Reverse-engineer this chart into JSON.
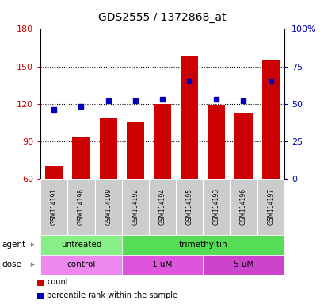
{
  "title": "GDS2555 / 1372868_at",
  "samples": [
    "GSM114191",
    "GSM114198",
    "GSM114199",
    "GSM114192",
    "GSM114194",
    "GSM114195",
    "GSM114193",
    "GSM114196",
    "GSM114197"
  ],
  "counts": [
    70,
    93,
    108,
    105,
    120,
    158,
    119,
    113,
    155
  ],
  "percentiles": [
    46,
    48,
    52,
    52,
    53,
    65,
    53,
    52,
    65
  ],
  "ylim_left": [
    60,
    180
  ],
  "ylim_right": [
    0,
    100
  ],
  "yticks_left": [
    60,
    90,
    120,
    150,
    180
  ],
  "yticks_right": [
    0,
    25,
    50,
    75,
    100
  ],
  "ytick_labels_right": [
    "0",
    "25",
    "50",
    "75",
    "100%"
  ],
  "bar_color": "#cc0000",
  "dot_color": "#0000bb",
  "bar_width": 0.65,
  "agent_groups": [
    {
      "label": "untreated",
      "start": 0,
      "end": 3,
      "color": "#88ee88"
    },
    {
      "label": "trimethyltin",
      "start": 3,
      "end": 9,
      "color": "#55dd55"
    }
  ],
  "dose_groups": [
    {
      "label": "control",
      "start": 0,
      "end": 3,
      "color": "#ee88ee"
    },
    {
      "label": "1 uM",
      "start": 3,
      "end": 6,
      "color": "#dd55dd"
    },
    {
      "label": "5 uM",
      "start": 6,
      "end": 9,
      "color": "#cc44cc"
    }
  ],
  "agent_label": "agent",
  "dose_label": "dose",
  "legend_count_label": "count",
  "legend_pct_label": "percentile rank within the sample",
  "tick_label_color_left": "#cc0000",
  "tick_label_color_right": "#0000bb",
  "bg_color": "#ffffff",
  "sample_label_bg": "#cccccc",
  "grid_yticks": [
    90,
    120,
    150
  ]
}
